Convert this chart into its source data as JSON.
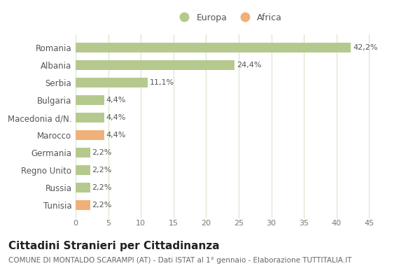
{
  "categories": [
    "Romania",
    "Albania",
    "Serbia",
    "Bulgaria",
    "Macedonia d/N.",
    "Marocco",
    "Germania",
    "Regno Unito",
    "Russia",
    "Tunisia"
  ],
  "values": [
    42.2,
    24.4,
    11.1,
    4.4,
    4.4,
    4.4,
    2.2,
    2.2,
    2.2,
    2.2
  ],
  "labels": [
    "42,2%",
    "24,4%",
    "11,1%",
    "4,4%",
    "4,4%",
    "4,4%",
    "2,2%",
    "2,2%",
    "2,2%",
    "2,2%"
  ],
  "colors": [
    "#b5c98e",
    "#b5c98e",
    "#b5c98e",
    "#b5c98e",
    "#b5c98e",
    "#f0b07a",
    "#b5c98e",
    "#b5c98e",
    "#b5c98e",
    "#f0b07a"
  ],
  "legend_europa_color": "#b5c98e",
  "legend_africa_color": "#f0b07a",
  "xlim": [
    0,
    47
  ],
  "xticks": [
    0,
    5,
    10,
    15,
    20,
    25,
    30,
    35,
    40,
    45
  ],
  "title": "Cittadini Stranieri per Cittadinanza",
  "subtitle": "COMUNE DI MONTALDO SCARAMPI (AT) - Dati ISTAT al 1° gennaio - Elaborazione TUTTITALIA.IT",
  "bg_color": "#ffffff",
  "grid_color": "#d8e4c8",
  "bar_height": 0.55,
  "label_fontsize": 8,
  "ytick_fontsize": 8.5,
  "xtick_fontsize": 8,
  "title_fontsize": 11,
  "subtitle_fontsize": 7.5
}
